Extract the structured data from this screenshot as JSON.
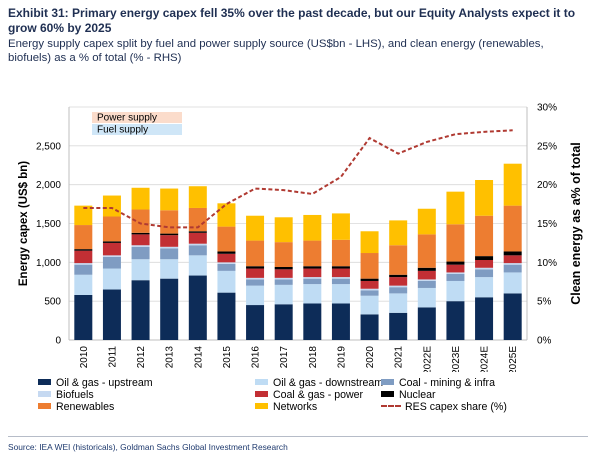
{
  "header": {
    "title": "Exhibit 31: Primary energy capex fell 35% over the past decade, but our Equity Analysts expect it to grow 60% by 2025",
    "subtitle": "Energy supply capex split by fuel and power supply source (US$bn - LHS), and clean energy (renewables, biofuels) as a % of total (% - RHS)"
  },
  "source": "Source: IEA WEI (historicals), Goldman Sachs Global Investment Research",
  "colors": {
    "oil_gas_upstream": "#0d2c58",
    "oil_gas_downstream": "#bfdcf4",
    "coal_mining_infra": "#7f9cc2",
    "biofuels": "#c6d9f1",
    "coal_gas_power": "#c22f34",
    "nuclear": "#000000",
    "renewables": "#ed7d31",
    "networks": "#ffc000",
    "res_share": "#b03a32",
    "power_bracket": "#fbdccb",
    "fuel_bracket": "#cfe6f7",
    "grid": "#d9d9d9"
  },
  "chart_data": {
    "type": "bar",
    "stacked": true,
    "categories": [
      "2010",
      "2011",
      "2012",
      "2013",
      "2014",
      "2015",
      "2016",
      "2017",
      "2018",
      "2019",
      "2020",
      "2021",
      "2022E",
      "2023E",
      "2024E",
      "2025E"
    ],
    "series": [
      {
        "name": "Oil & gas - upstream",
        "color_key": "oil_gas_upstream",
        "values": [
          580,
          650,
          770,
          790,
          830,
          610,
          450,
          460,
          470,
          470,
          330,
          350,
          420,
          500,
          550,
          600
        ]
      },
      {
        "name": "Oil & gas - downstream",
        "color_key": "oil_gas_downstream",
        "values": [
          260,
          270,
          270,
          250,
          260,
          280,
          250,
          250,
          250,
          250,
          240,
          250,
          250,
          260,
          260,
          270
        ]
      },
      {
        "name": "Coal - mining & infra",
        "color_key": "coal_mining_infra",
        "values": [
          130,
          150,
          160,
          140,
          130,
          90,
          80,
          70,
          70,
          70,
          70,
          80,
          90,
          90,
          100,
          100
        ]
      },
      {
        "name": "Biofuels",
        "color_key": "biofuels",
        "values": [
          20,
          20,
          20,
          20,
          20,
          20,
          20,
          20,
          20,
          20,
          20,
          20,
          20,
          20,
          20,
          20
        ]
      },
      {
        "name": "Coal & gas - power",
        "color_key": "coal_gas_power",
        "values": [
          160,
          160,
          140,
          150,
          140,
          110,
          120,
          110,
          110,
          110,
          100,
          110,
          110,
          100,
          100,
          100
        ]
      },
      {
        "name": "Nuclear",
        "color_key": "nuclear",
        "values": [
          20,
          20,
          20,
          20,
          20,
          30,
          30,
          30,
          30,
          30,
          30,
          30,
          40,
          40,
          50,
          50
        ]
      },
      {
        "name": "Renewables",
        "color_key": "renewables",
        "values": [
          310,
          320,
          300,
          300,
          300,
          320,
          330,
          320,
          330,
          340,
          330,
          380,
          430,
          480,
          520,
          590
        ]
      },
      {
        "name": "Networks",
        "color_key": "networks",
        "values": [
          250,
          270,
          280,
          280,
          280,
          300,
          320,
          320,
          330,
          340,
          280,
          320,
          330,
          420,
          460,
          540
        ]
      }
    ],
    "line_series": {
      "name": "RES capex share (%)",
      "color_key": "res_share",
      "axis": "right",
      "values": [
        17,
        17,
        15,
        14.5,
        14.5,
        17.5,
        19.5,
        19.3,
        18.8,
        21,
        26,
        24,
        25.5,
        26.5,
        26.8,
        27
      ]
    },
    "ylabel": "Energy capex (US$ bn)",
    "ylabel_right": "Clean energy as a% of total",
    "ylim": [
      0,
      3000
    ],
    "yticks": [
      "0",
      "500",
      "1,000",
      "1,500",
      "2,000",
      "2,500"
    ],
    "ylim_right": [
      0,
      30
    ],
    "yticks_right": [
      "0%",
      "5%",
      "10%",
      "15%",
      "20%",
      "25%",
      "30%"
    ],
    "brackets": [
      {
        "label": "Power supply",
        "color_key": "power_bracket"
      },
      {
        "label": "Fuel supply",
        "color_key": "fuel_bracket"
      }
    ],
    "grid": "horizontal",
    "legend_position": "bottom"
  }
}
